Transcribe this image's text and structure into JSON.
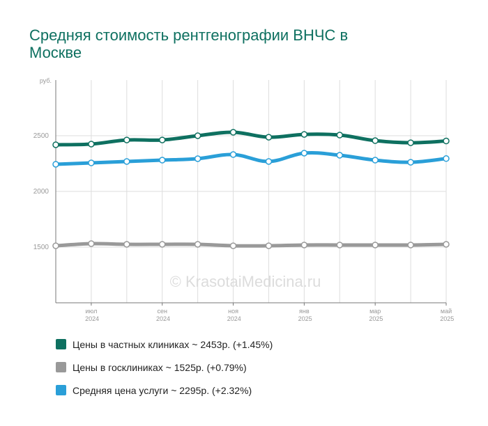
{
  "chart_data": {
    "type": "line",
    "title": "Средняя стоимость рентгенографии ВНЧС в Москве",
    "ylabel": "руб.",
    "watermark": "© KrasotaiMedicina.ru",
    "categories": [
      null,
      "июл 2024",
      null,
      "сен 2024",
      null,
      "ноя 2024",
      null,
      "янв 2025",
      null,
      "мар 2025",
      null,
      "май 2025"
    ],
    "ylim": [
      1000,
      3000
    ],
    "yticks": [
      1500,
      2000,
      2500
    ],
    "grid": true,
    "series": [
      {
        "name": "Цены в частных клиниках ~ 2453р. (+1.45%)",
        "color": "#0e7060",
        "values": [
          2419,
          2425,
          2462,
          2462,
          2500,
          2531,
          2487,
          2512,
          2506,
          2456,
          2437,
          2453
        ]
      },
      {
        "name": "Цены в госклиниках ~ 1525р. (+0.79%)",
        "color": "#999999",
        "values": [
          1512,
          1531,
          1525,
          1525,
          1525,
          1512,
          1512,
          1519,
          1519,
          1519,
          1519,
          1525
        ]
      },
      {
        "name": "Средняя цена услуги ~ 2295р. (+2.32%)",
        "color": "#2a9fd8",
        "values": [
          2244,
          2256,
          2269,
          2281,
          2294,
          2331,
          2269,
          2344,
          2325,
          2281,
          2262,
          2295
        ]
      }
    ]
  }
}
